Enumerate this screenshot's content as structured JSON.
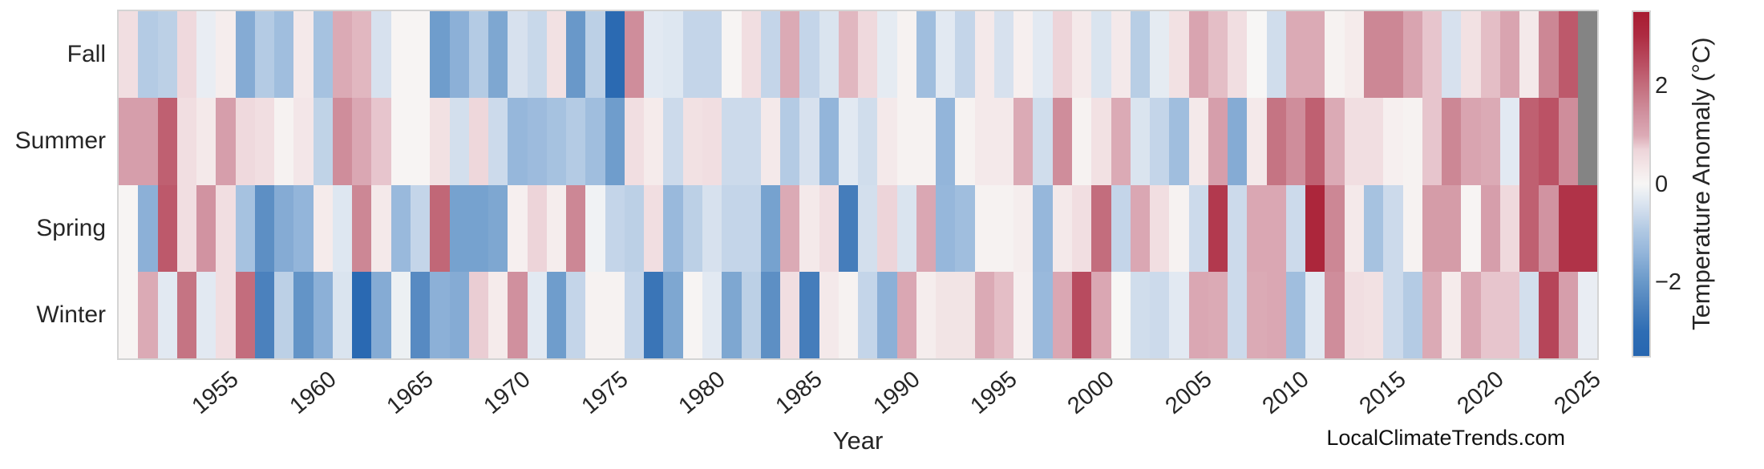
{
  "watermark": "LocalClimateTrends.com",
  "chart_data": {
    "type": "heatmap",
    "xlabel": "Year",
    "colorbar_label": "Temperature Anomaly (°C)",
    "rows": [
      "Fall",
      "Summer",
      "Spring",
      "Winter"
    ],
    "years_start": 1950,
    "years_end": 2025,
    "x_ticks": [
      1955,
      1960,
      1965,
      1970,
      1975,
      1980,
      1985,
      1990,
      1995,
      2000,
      2005,
      2010,
      2015,
      2020,
      2025
    ],
    "colorbar_ticks": [
      2,
      0,
      -2
    ],
    "vmin": -3.5,
    "vmax": 3.5,
    "grid": false,
    "missing_color": "#848484",
    "frame_color": "#d4d4d4",
    "colormap_stops": [
      [
        0.0,
        "#2766b0"
      ],
      [
        0.07,
        "#2e6db4"
      ],
      [
        0.14,
        "#4a80bc"
      ],
      [
        0.22,
        "#6b9aca"
      ],
      [
        0.3,
        "#93b5da"
      ],
      [
        0.36,
        "#aec7e2"
      ],
      [
        0.42,
        "#cfdcec"
      ],
      [
        0.46,
        "#e3eaf2"
      ],
      [
        0.5,
        "#f7f6f5"
      ],
      [
        0.545,
        "#f4e8e9"
      ],
      [
        0.6,
        "#edd4d9"
      ],
      [
        0.64,
        "#dcabb6"
      ],
      [
        0.7,
        "#d193a1"
      ],
      [
        0.78,
        "#c4707f"
      ],
      [
        0.86,
        "#b84a5e"
      ],
      [
        0.93,
        "#ae2c42"
      ],
      [
        1.0,
        "#a81c31"
      ]
    ],
    "series": [
      {
        "name": "Fall",
        "values": [
          0.5,
          -0.9,
          -0.8,
          0.6,
          -0.2,
          0.2,
          -1.6,
          -0.9,
          -1.2,
          0.3,
          -1.1,
          1.0,
          0.9,
          -0.45,
          0.05,
          0.05,
          -1.9,
          -1.5,
          -0.9,
          -1.7,
          -0.45,
          -0.65,
          0.45,
          -2.0,
          -0.8,
          -3.2,
          1.5,
          -0.3,
          -0.35,
          -0.7,
          -0.7,
          0.05,
          0.5,
          -0.7,
          1.0,
          -0.7,
          -0.4,
          0.9,
          0.6,
          -0.25,
          0.1,
          -1.2,
          -0.3,
          -0.7,
          0.3,
          -0.45,
          0.15,
          -0.3,
          0.7,
          0.3,
          -0.4,
          0.3,
          -0.85,
          -0.25,
          0.45,
          1.1,
          0.85,
          0.5,
          0.0,
          -0.55,
          1.0,
          1.0,
          0.1,
          0.25,
          1.6,
          1.6,
          1.1,
          0.8,
          -0.45,
          0.45,
          0.85,
          1.1,
          0.3,
          1.6,
          2.3,
          null
        ]
      },
      {
        "name": "Summer",
        "values": [
          1.2,
          1.2,
          2.2,
          0.5,
          0.3,
          1.2,
          0.6,
          0.5,
          0.1,
          0.35,
          -0.75,
          1.5,
          1.05,
          0.8,
          0.05,
          0.05,
          0.45,
          -0.5,
          0.65,
          -0.6,
          -1.35,
          -1.25,
          -1.1,
          -0.9,
          -1.2,
          -1.9,
          0.5,
          0.25,
          -0.6,
          0.45,
          0.5,
          -0.6,
          -0.6,
          0.3,
          -0.9,
          -0.45,
          -1.4,
          -0.3,
          -0.55,
          0.3,
          0.1,
          0.1,
          -1.4,
          0.1,
          0.3,
          0.3,
          1.0,
          -0.55,
          1.5,
          0.1,
          0.45,
          1.0,
          -0.4,
          -0.7,
          -1.2,
          0.3,
          1.2,
          -1.6,
          0.3,
          1.9,
          1.5,
          2.2,
          1.0,
          0.5,
          0.5,
          0.15,
          0.1,
          0.8,
          1.6,
          1.1,
          1.0,
          -0.3,
          2.2,
          2.4,
          1.5,
          null
        ]
      },
      {
        "name": "Spring",
        "values": [
          0.05,
          -1.5,
          2.3,
          0.5,
          1.4,
          0.5,
          -1.1,
          -2.2,
          -1.6,
          -1.4,
          0.25,
          -0.35,
          1.6,
          0.3,
          -1.3,
          -0.7,
          2.1,
          -1.8,
          -1.8,
          -1.7,
          0.15,
          0.7,
          0.2,
          1.6,
          -0.1,
          -0.7,
          -0.8,
          0.5,
          -1.3,
          -0.8,
          -0.45,
          -0.7,
          -0.7,
          -1.8,
          1.0,
          0.3,
          0.5,
          -2.6,
          -0.5,
          0.7,
          -0.4,
          1.05,
          -1.35,
          -1.2,
          0.1,
          0.1,
          0.2,
          -1.35,
          0.3,
          0.5,
          2.0,
          -0.7,
          1.05,
          0.5,
          0.1,
          -0.6,
          2.8,
          -0.6,
          1.05,
          1.05,
          -0.6,
          3.2,
          1.6,
          0.3,
          -1.1,
          -0.6,
          0.1,
          1.25,
          1.25,
          0.05,
          1.2,
          0.6,
          2.2,
          1.4,
          2.9,
          2.9
        ]
      },
      {
        "name": "Winter",
        "values": [
          0.05,
          1.0,
          -0.3,
          1.9,
          -0.3,
          0.5,
          2.0,
          -2.5,
          -0.8,
          -2.1,
          -1.5,
          -0.4,
          -3.3,
          -1.6,
          -0.15,
          -2.3,
          -1.5,
          -1.6,
          0.75,
          0.25,
          1.45,
          -0.3,
          -1.9,
          -0.7,
          0.1,
          0.1,
          -0.7,
          -2.8,
          -1.7,
          0.05,
          -0.3,
          -1.7,
          -0.8,
          -2.2,
          0.5,
          -2.6,
          0.3,
          0.1,
          -0.7,
          -1.5,
          1.05,
          0.2,
          0.4,
          0.4,
          1.0,
          0.85,
          0.15,
          -1.3,
          1.05,
          2.5,
          1.05,
          0.0,
          -0.55,
          -0.6,
          -0.3,
          1.05,
          1.0,
          -0.6,
          1.0,
          1.05,
          -1.2,
          -0.3,
          1.5,
          0.5,
          0.45,
          -0.6,
          -0.9,
          1.0,
          0.25,
          1.05,
          0.8,
          0.8,
          -0.5,
          2.6,
          1.2,
          -0.2
        ]
      }
    ]
  }
}
